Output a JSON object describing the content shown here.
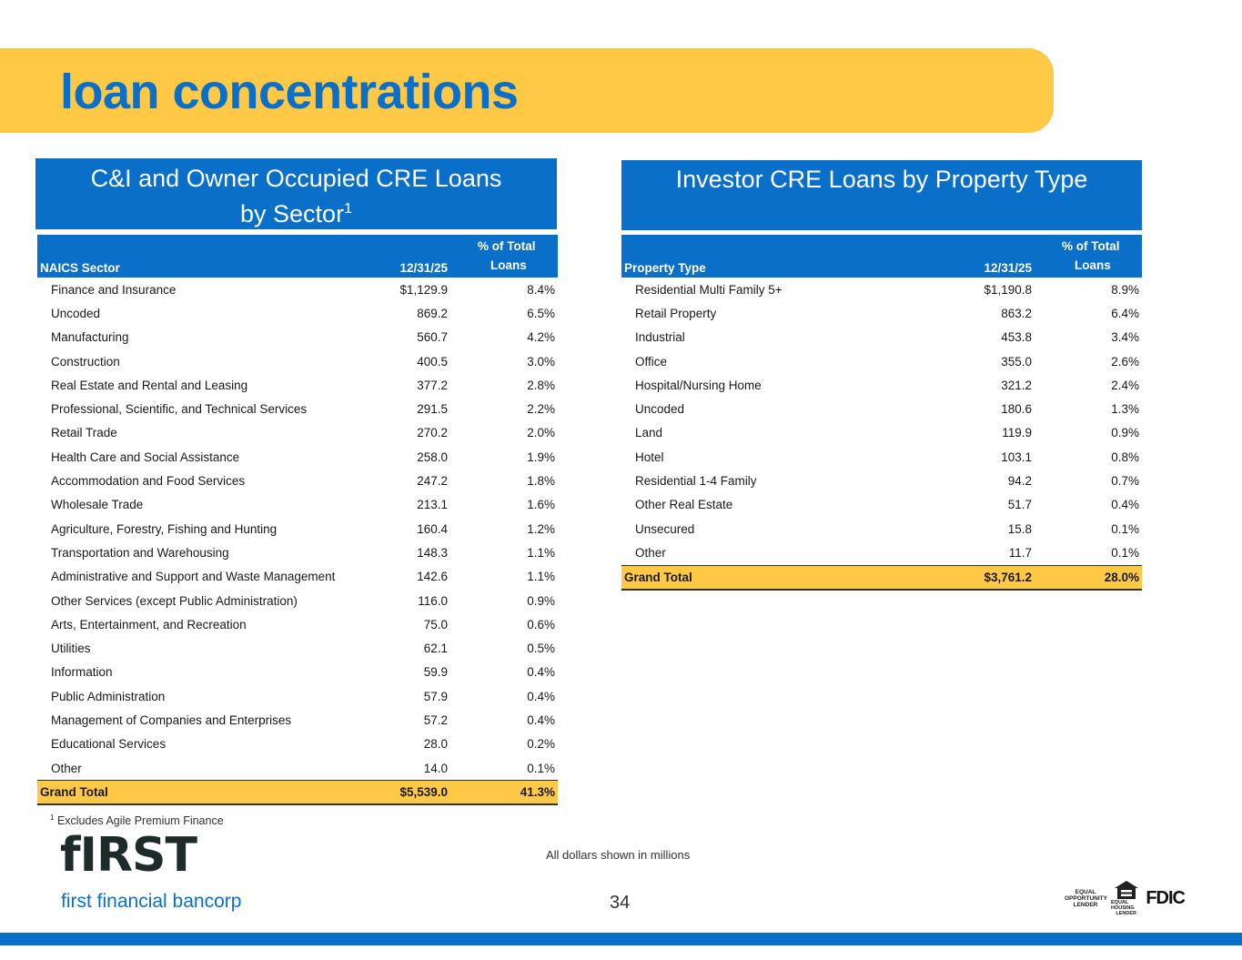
{
  "page": {
    "title": "loan concentrations",
    "page_number": "34",
    "note_dollars": "All dollars shown in millions"
  },
  "colors": {
    "brand_blue": "#0A6FC9",
    "brand_yellow": "#FFC845"
  },
  "left_table": {
    "title_line1": "C&I and Owner Occupied CRE Loans",
    "title_line2": "by Sector",
    "title_sup": "1",
    "columns": {
      "name": "NAICS Sector",
      "amount": "12/31/25",
      "pct_line1": "% of Total",
      "pct_line2": "Loans"
    },
    "rows": [
      {
        "name": "Finance and Insurance",
        "amount": "$1,129.9",
        "pct": "8.4%"
      },
      {
        "name": "Uncoded",
        "amount": "869.2",
        "pct": "6.5%"
      },
      {
        "name": "Manufacturing",
        "amount": "560.7",
        "pct": "4.2%"
      },
      {
        "name": "Construction",
        "amount": "400.5",
        "pct": "3.0%"
      },
      {
        "name": "Real Estate and Rental and Leasing",
        "amount": "377.2",
        "pct": "2.8%"
      },
      {
        "name": "Professional, Scientific, and Technical Services",
        "amount": "291.5",
        "pct": "2.2%"
      },
      {
        "name": "Retail Trade",
        "amount": "270.2",
        "pct": "2.0%"
      },
      {
        "name": "Health Care and Social Assistance",
        "amount": "258.0",
        "pct": "1.9%"
      },
      {
        "name": "Accommodation and Food Services",
        "amount": "247.2",
        "pct": "1.8%"
      },
      {
        "name": "Wholesale Trade",
        "amount": "213.1",
        "pct": "1.6%"
      },
      {
        "name": "Agriculture, Forestry, Fishing and Hunting",
        "amount": "160.4",
        "pct": "1.2%"
      },
      {
        "name": "Transportation and Warehousing",
        "amount": "148.3",
        "pct": "1.1%"
      },
      {
        "name": "Administrative and Support and Waste Management",
        "amount": "142.6",
        "pct": "1.1%"
      },
      {
        "name": "Other Services (except Public Administration)",
        "amount": "116.0",
        "pct": "0.9%"
      },
      {
        "name": "Arts, Entertainment, and Recreation",
        "amount": "75.0",
        "pct": "0.6%"
      },
      {
        "name": "Utilities",
        "amount": "62.1",
        "pct": "0.5%"
      },
      {
        "name": "Information",
        "amount": "59.9",
        "pct": "0.4%"
      },
      {
        "name": "Public Administration",
        "amount": "57.9",
        "pct": "0.4%"
      },
      {
        "name": "Management of Companies and Enterprises",
        "amount": "57.2",
        "pct": "0.4%"
      },
      {
        "name": "Educational Services",
        "amount": "28.0",
        "pct": "0.2%"
      },
      {
        "name": "Other",
        "amount": "14.0",
        "pct": "0.1%"
      }
    ],
    "total": {
      "name": "Grand Total",
      "amount": "$5,539.0",
      "pct": "41.3%"
    },
    "footnote_sup": "1",
    "footnote": "Excludes Agile Premium Finance"
  },
  "right_table": {
    "title": "Investor CRE Loans by Property Type",
    "columns": {
      "name": "Property Type",
      "amount": "12/31/25",
      "pct_line1": "% of Total",
      "pct_line2": "Loans"
    },
    "rows": [
      {
        "name": "Residential Multi Family 5+",
        "amount": "$1,190.8",
        "pct": "8.9%"
      },
      {
        "name": "Retail Property",
        "amount": "863.2",
        "pct": "6.4%"
      },
      {
        "name": "Industrial",
        "amount": "453.8",
        "pct": "3.4%"
      },
      {
        "name": "Office",
        "amount": "355.0",
        "pct": "2.6%"
      },
      {
        "name": "Hospital/Nursing Home",
        "amount": "321.2",
        "pct": "2.4%"
      },
      {
        "name": "Uncoded",
        "amount": "180.6",
        "pct": "1.3%"
      },
      {
        "name": "Land",
        "amount": "119.9",
        "pct": "0.9%"
      },
      {
        "name": "Hotel",
        "amount": "103.1",
        "pct": "0.8%"
      },
      {
        "name": "Residential 1-4 Family",
        "amount": "94.2",
        "pct": "0.7%"
      },
      {
        "name": "Other Real Estate",
        "amount": "51.7",
        "pct": "0.4%"
      },
      {
        "name": "Unsecured",
        "amount": "15.8",
        "pct": "0.1%"
      },
      {
        "name": "Other",
        "amount": "11.7",
        "pct": "0.1%"
      }
    ],
    "total": {
      "name": "Grand Total",
      "amount": "$3,761.2",
      "pct": "28.0%"
    }
  },
  "branding": {
    "logo_word": "fIRST",
    "logo_sub": "first financial bancorp",
    "badge_eol": [
      "EQUAL",
      "OPPORTUNITY",
      "LENDER"
    ],
    "badge_ehl": [
      "EQUAL HOUSING",
      "LENDER"
    ],
    "badge_fdic": "FDIC"
  }
}
